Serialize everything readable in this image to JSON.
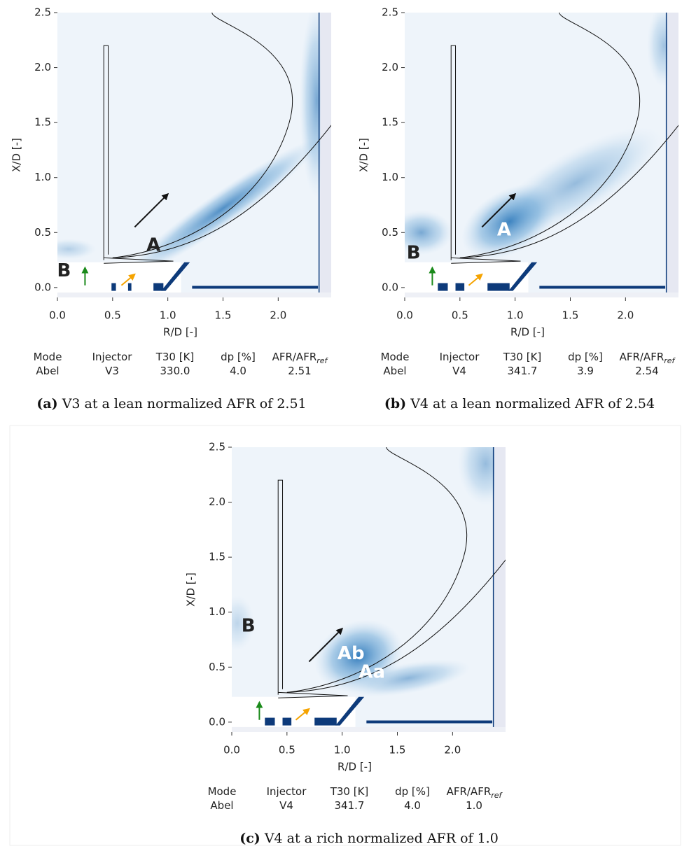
{
  "chart_data": [
    {
      "type": "contour",
      "xlabel": "R/D [-]",
      "ylabel": "X/D [-]",
      "xlim": [
        0,
        2.48
      ],
      "ylim": [
        -0.09,
        2.5
      ],
      "xticks": [
        {
          "value": 0,
          "label": "0.0"
        },
        {
          "value": 0.5,
          "label": "0.5"
        },
        {
          "value": 1,
          "label": "1.0"
        },
        {
          "value": 1.5,
          "label": "1.5"
        },
        {
          "value": 2,
          "label": "2.0"
        }
      ],
      "yticks": [
        {
          "value": 0,
          "label": "0.0"
        },
        {
          "value": 0.5,
          "label": "0.5"
        },
        {
          "value": 1,
          "label": "1.0"
        },
        {
          "value": 1.5,
          "label": "1.5"
        },
        {
          "value": 2,
          "label": "2.0"
        },
        {
          "value": 2.5,
          "label": "2.5"
        }
      ],
      "annotations": [
        {
          "text": "A",
          "x": 0.87,
          "y": 0.38,
          "color": "#222222"
        },
        {
          "text": "B",
          "x": 0.06,
          "y": 0.15,
          "color": "#222222"
        }
      ],
      "table": {
        "headers": [
          "Mode",
          "Injector",
          "T30 [K]",
          "dp [%]",
          "AFR/AFR"
        ],
        "header_subscript": "ref",
        "row": [
          "Abel",
          "V3",
          "330.0",
          "4.0",
          "2.51"
        ]
      },
      "caption": {
        "label": "(a)",
        "text": "V3 at a lean normalized AFR of 2.51"
      }
    },
    {
      "type": "contour",
      "xlabel": "R/D [-]",
      "ylabel": "X/D [-]",
      "xlim": [
        0,
        2.48
      ],
      "ylim": [
        -0.09,
        2.5
      ],
      "xticks": [
        {
          "value": 0,
          "label": "0.0"
        },
        {
          "value": 0.5,
          "label": "0.5"
        },
        {
          "value": 1,
          "label": "1.0"
        },
        {
          "value": 1.5,
          "label": "1.5"
        },
        {
          "value": 2,
          "label": "2.0"
        }
      ],
      "yticks": [
        {
          "value": 0,
          "label": "0.0"
        },
        {
          "value": 0.5,
          "label": "0.5"
        },
        {
          "value": 1,
          "label": "1.0"
        },
        {
          "value": 1.5,
          "label": "1.5"
        },
        {
          "value": 2,
          "label": "2.0"
        },
        {
          "value": 2.5,
          "label": "2.5"
        }
      ],
      "annotations": [
        {
          "text": "A",
          "x": 0.9,
          "y": 0.52,
          "color": "#ffffff"
        },
        {
          "text": "B",
          "x": 0.08,
          "y": 0.31,
          "color": "#222222"
        }
      ],
      "table": {
        "headers": [
          "Mode",
          "Injector",
          "T30 [K]",
          "dp [%]",
          "AFR/AFR"
        ],
        "header_subscript": "ref",
        "row": [
          "Abel",
          "V4",
          "341.7",
          "3.9",
          "2.54"
        ]
      },
      "caption": {
        "label": "(b)",
        "text": "V4 at a lean normalized AFR of 2.54"
      }
    },
    {
      "type": "contour",
      "xlabel": "R/D [-]",
      "ylabel": "X/D [-]",
      "xlim": [
        0,
        2.48
      ],
      "ylim": [
        -0.09,
        2.5
      ],
      "xticks": [
        {
          "value": 0,
          "label": "0.0"
        },
        {
          "value": 0.5,
          "label": "0.5"
        },
        {
          "value": 1,
          "label": "1.0"
        },
        {
          "value": 1.5,
          "label": "1.5"
        },
        {
          "value": 2,
          "label": "2.0"
        }
      ],
      "yticks": [
        {
          "value": 0,
          "label": "0.0"
        },
        {
          "value": 0.5,
          "label": "0.5"
        },
        {
          "value": 1,
          "label": "1.0"
        },
        {
          "value": 1.5,
          "label": "1.5"
        },
        {
          "value": 2,
          "label": "2.0"
        },
        {
          "value": 2.5,
          "label": "2.5"
        }
      ],
      "annotations": [
        {
          "text": "Ab",
          "x": 1.08,
          "y": 0.62,
          "color": "#ffffff"
        },
        {
          "text": "Aa",
          "x": 1.27,
          "y": 0.45,
          "color": "#ffffff"
        },
        {
          "text": "B",
          "x": 0.15,
          "y": 0.87,
          "color": "#222222"
        }
      ],
      "table": {
        "headers": [
          "Mode",
          "Injector",
          "T30 [K]",
          "dp [%]",
          "AFR/AFR"
        ],
        "header_subscript": "ref",
        "row": [
          "Abel",
          "V4",
          "341.7",
          "4.0",
          "1.0"
        ]
      },
      "caption": {
        "label": "(c)",
        "text": "V4 at a rich normalized AFR of 1.0"
      }
    }
  ]
}
